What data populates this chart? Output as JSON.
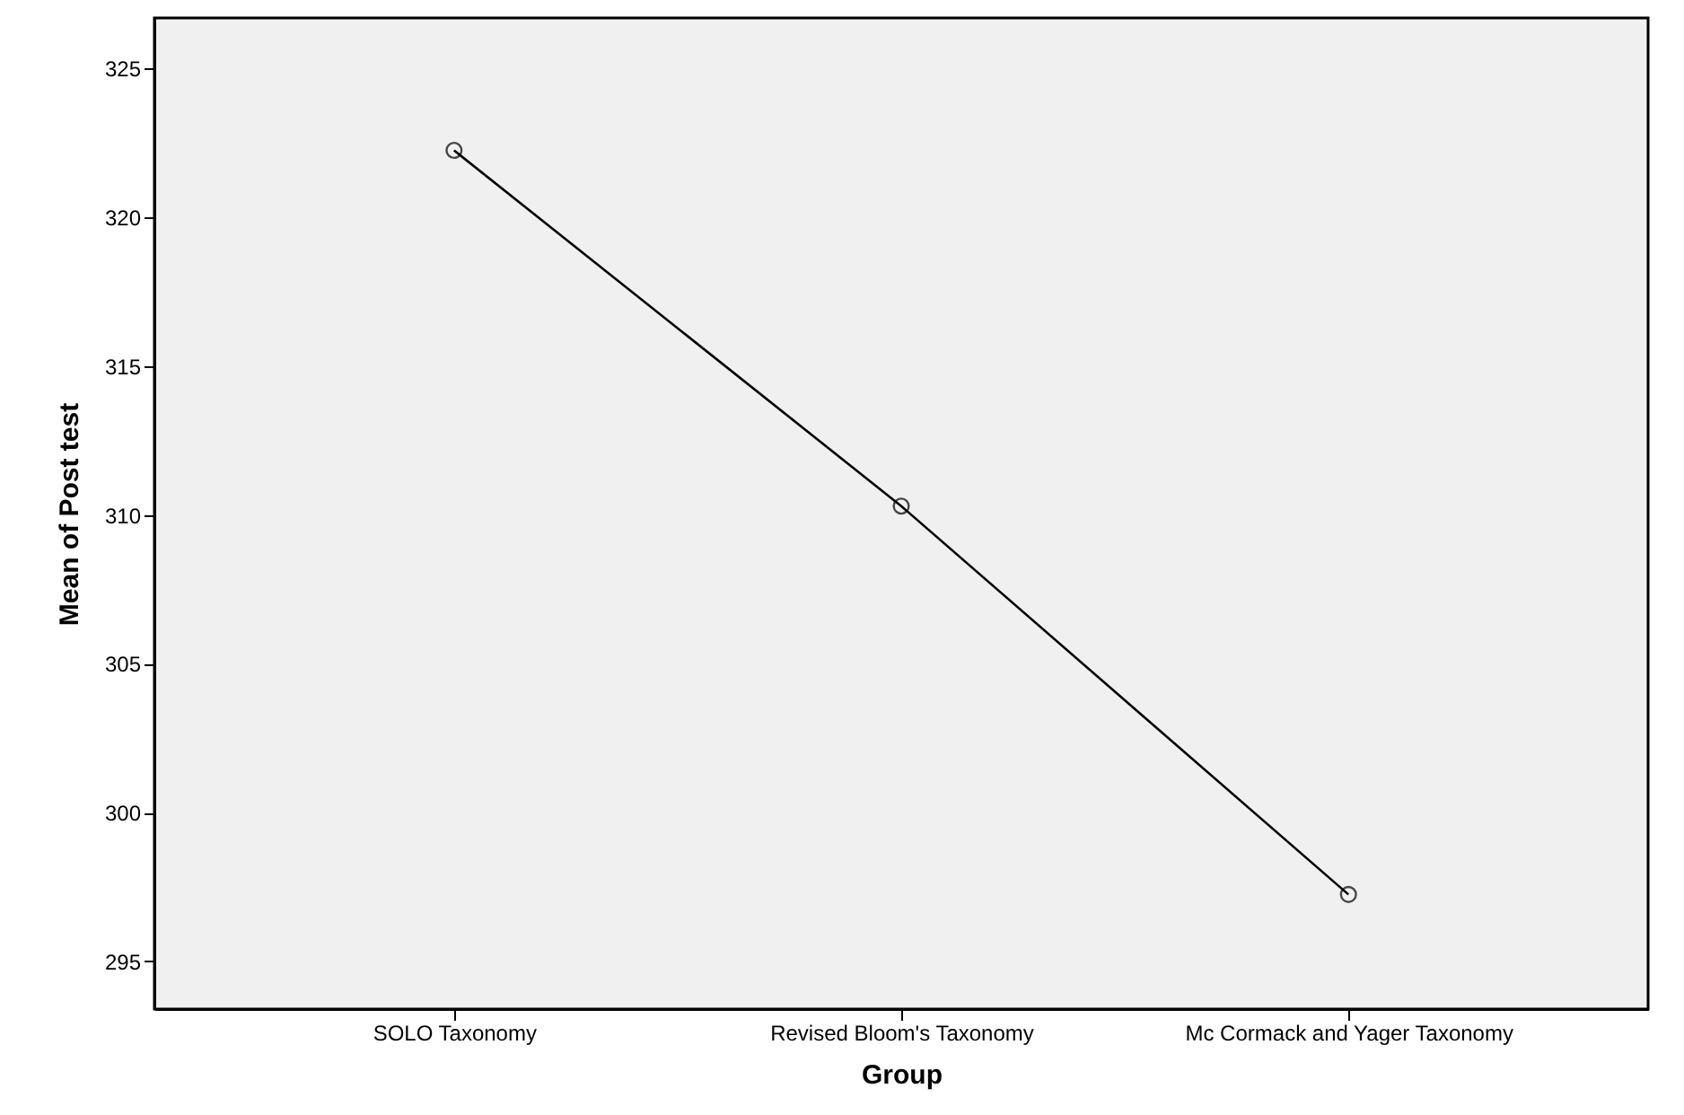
{
  "chart_data": {
    "type": "line",
    "xlabel": "Group",
    "ylabel": "Mean of Post test",
    "categories": [
      "SOLO Taxonomy",
      "Revised Bloom's Taxonomy",
      "Mc Cormack and Yager Taxonomy"
    ],
    "series": [
      {
        "color": "#000000",
        "values": [
          322.25,
          310.3,
          297.25
        ]
      }
    ],
    "ylim": [
      293.4,
      326.7
    ],
    "yticks": [
      295,
      300,
      305,
      310,
      315,
      320,
      325
    ],
    "marker": "circle",
    "line_style": "solid"
  }
}
